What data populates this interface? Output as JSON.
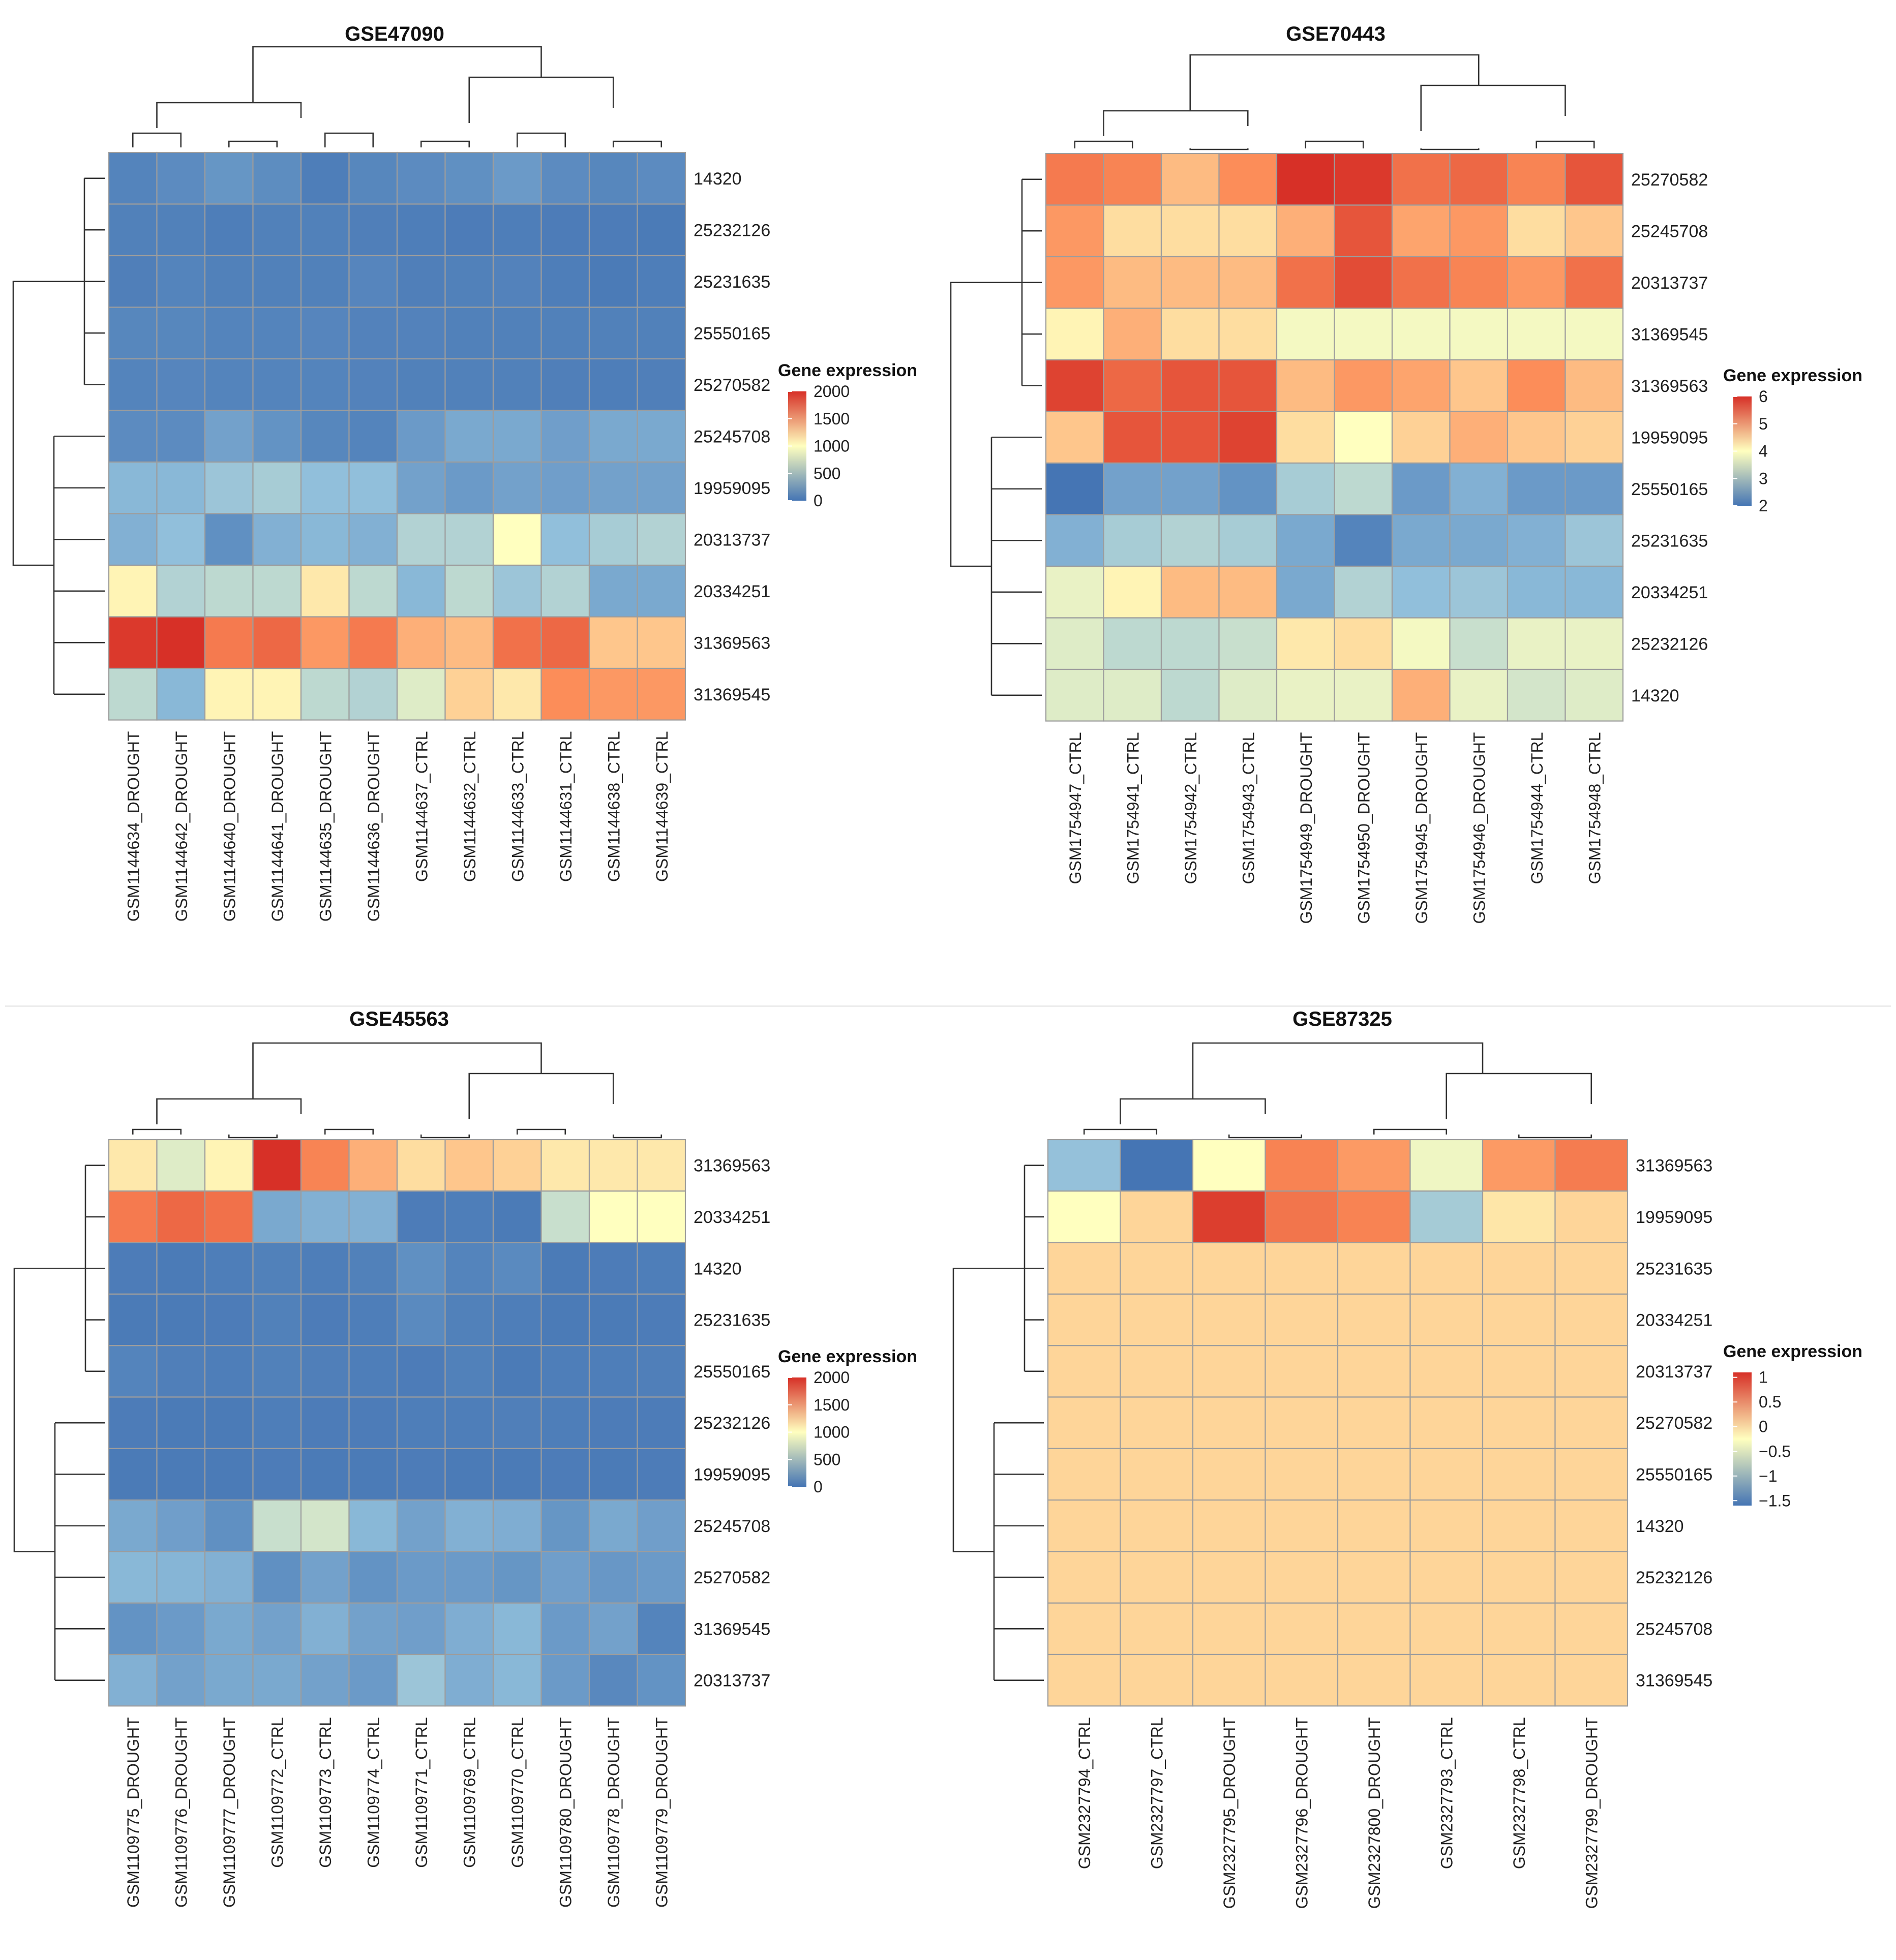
{
  "legend_title": "Gene expression",
  "chart_data": [
    {
      "type": "heatmap",
      "title": "GSE47090",
      "columns": [
        "GSM1144634_DROUGHT",
        "GSM1144642_DROUGHT",
        "GSM1144640_DROUGHT",
        "GSM1144641_DROUGHT",
        "GSM1144635_DROUGHT",
        "GSM1144636_DROUGHT",
        "GSM1144637_CTRL",
        "GSM1144632_CTRL",
        "GSM1144633_CTRL",
        "GSM1144631_CTRL",
        "GSM1144638_CTRL",
        "GSM1144639_CTRL"
      ],
      "rows": [
        "14320",
        "25232126",
        "25231635",
        "25550165",
        "25270582",
        "25245708",
        "19959095",
        "20313737",
        "20334251",
        "31369563",
        "31369545"
      ],
      "values": [
        [
          100,
          150,
          220,
          160,
          60,
          120,
          150,
          180,
          250,
          150,
          120,
          150
        ],
        [
          80,
          80,
          60,
          80,
          80,
          70,
          60,
          50,
          60,
          50,
          50,
          40
        ],
        [
          70,
          100,
          80,
          80,
          80,
          110,
          70,
          80,
          90,
          60,
          40,
          60
        ],
        [
          120,
          120,
          100,
          100,
          110,
          90,
          90,
          80,
          80,
          80,
          80,
          80
        ],
        [
          100,
          110,
          100,
          100,
          100,
          90,
          80,
          80,
          80,
          70,
          60,
          70
        ],
        [
          150,
          150,
          300,
          200,
          120,
          100,
          250,
          350,
          350,
          280,
          350,
          350
        ],
        [
          450,
          450,
          550,
          600,
          500,
          500,
          300,
          250,
          300,
          280,
          300,
          300
        ],
        [
          400,
          500,
          180,
          400,
          450,
          400,
          650,
          650,
          1000,
          500,
          600,
          650
        ],
        [
          1050,
          650,
          700,
          700,
          1100,
          700,
          450,
          700,
          550,
          650,
          350,
          350
        ],
        [
          1950,
          2000,
          1600,
          1700,
          1450,
          1600,
          1350,
          1300,
          1650,
          1700,
          1250,
          1250
        ],
        [
          700,
          450,
          1050,
          1050,
          700,
          650,
          850,
          1200,
          1100,
          1500,
          1450,
          1450
        ]
      ],
      "legend": {
        "min": 0,
        "max": 2000,
        "ticks": [
          2000,
          1500,
          1000,
          500,
          0
        ]
      }
    },
    {
      "type": "heatmap",
      "title": "GSE70443",
      "columns": [
        "GSM1754947_CTRL",
        "GSM1754941_CTRL",
        "GSM1754942_CTRL",
        "GSM1754943_CTRL",
        "GSM1754949_DROUGHT",
        "GSM1754950_DROUGHT",
        "GSM1754945_DROUGHT",
        "GSM1754946_DROUGHT",
        "GSM1754944_CTRL",
        "GSM1754948_CTRL"
      ],
      "rows": [
        "25270582",
        "25245708",
        "20313737",
        "31369545",
        "31369563",
        "19959095",
        "25550165",
        "25231635",
        "20334251",
        "25232126",
        "14320"
      ],
      "values": [
        [
          5.2,
          5.1,
          4.6,
          5.0,
          6.0,
          5.9,
          5.3,
          5.4,
          5.1,
          5.6
        ],
        [
          4.9,
          4.3,
          4.3,
          4.3,
          4.7,
          5.6,
          4.8,
          4.9,
          4.3,
          4.5
        ],
        [
          4.9,
          4.6,
          4.6,
          4.6,
          5.3,
          5.7,
          5.3,
          5.1,
          4.9,
          5.3
        ],
        [
          4.1,
          4.7,
          4.3,
          4.3,
          3.9,
          3.9,
          3.9,
          3.9,
          3.9,
          3.9
        ],
        [
          5.8,
          5.4,
          5.6,
          5.6,
          4.6,
          4.9,
          4.8,
          4.5,
          5.0,
          4.6
        ],
        [
          4.5,
          5.6,
          5.6,
          5.8,
          4.3,
          4.0,
          4.4,
          4.7,
          4.5,
          4.4
        ],
        [
          2.0,
          2.6,
          2.6,
          2.4,
          3.2,
          3.4,
          2.5,
          2.8,
          2.5,
          2.5
        ],
        [
          2.8,
          3.2,
          3.3,
          3.2,
          2.7,
          2.2,
          2.7,
          2.7,
          2.8,
          3.1
        ],
        [
          3.8,
          4.1,
          4.6,
          4.6,
          2.7,
          3.3,
          3.0,
          3.1,
          2.9,
          2.9
        ],
        [
          3.7,
          3.4,
          3.4,
          3.5,
          4.2,
          4.3,
          3.9,
          3.5,
          3.8,
          3.8
        ],
        [
          3.7,
          3.7,
          3.4,
          3.7,
          3.8,
          3.8,
          4.7,
          3.8,
          3.6,
          3.7
        ]
      ],
      "legend": {
        "min": 2,
        "max": 6,
        "ticks": [
          6,
          5,
          4,
          3,
          2
        ]
      }
    },
    {
      "type": "heatmap",
      "title": "GSE45563",
      "columns": [
        "GSM1109775_DROUGHT",
        "GSM1109776_DROUGHT",
        "GSM1109777_DROUGHT",
        "GSM1109772_CTRL",
        "GSM1109773_CTRL",
        "GSM1109774_CTRL",
        "GSM1109771_CTRL",
        "GSM1109769_CTRL",
        "GSM1109770_CTRL",
        "GSM1109780_DROUGHT",
        "GSM1109778_DROUGHT",
        "GSM1109779_DROUGHT"
      ],
      "rows": [
        "31369563",
        "20334251",
        "14320",
        "25231635",
        "25550165",
        "25232126",
        "19959095",
        "25245708",
        "25270582",
        "31369545",
        "20313737"
      ],
      "values": [
        [
          1100,
          850,
          1050,
          2000,
          1550,
          1350,
          1150,
          1250,
          1200,
          1100,
          1100,
          1100
        ],
        [
          1600,
          1700,
          1650,
          350,
          400,
          400,
          50,
          60,
          40,
          750,
          1000,
          1000
        ],
        [
          50,
          40,
          60,
          80,
          60,
          80,
          180,
          100,
          140,
          40,
          50,
          60
        ],
        [
          40,
          40,
          50,
          80,
          50,
          60,
          140,
          80,
          60,
          40,
          40,
          50
        ],
        [
          100,
          70,
          60,
          80,
          70,
          60,
          50,
          80,
          40,
          60,
          60,
          70
        ],
        [
          50,
          40,
          40,
          60,
          50,
          50,
          60,
          60,
          70,
          60,
          50,
          50
        ],
        [
          40,
          40,
          40,
          50,
          40,
          40,
          50,
          40,
          40,
          50,
          40,
          50
        ],
        [
          350,
          280,
          180,
          750,
          800,
          450,
          300,
          400,
          380,
          220,
          350,
          280
        ],
        [
          450,
          430,
          400,
          180,
          300,
          200,
          250,
          250,
          220,
          280,
          230,
          250
        ],
        [
          200,
          250,
          350,
          300,
          400,
          300,
          280,
          380,
          450,
          250,
          300,
          100
        ],
        [
          400,
          300,
          350,
          350,
          300,
          250,
          550,
          380,
          450,
          250,
          130,
          200
        ]
      ],
      "legend": {
        "min": 0,
        "max": 2000,
        "ticks": [
          2000,
          1500,
          1000,
          500,
          0
        ]
      }
    },
    {
      "type": "heatmap",
      "title": "GSE87325",
      "columns": [
        "GSM2327794_CTRL",
        "GSM2327797_CTRL",
        "GSM2327795_DROUGHT",
        "GSM2327796_DROUGHT",
        "GSM2327800_DROUGHT",
        "GSM2327793_CTRL",
        "GSM2327798_CTRL",
        "GSM2327799_DROUGHT"
      ],
      "rows": [
        "31369563",
        "19959095",
        "25231635",
        "20334251",
        "20313737",
        "25270582",
        "25550165",
        "14320",
        "25232126",
        "25245708",
        "31369545"
      ],
      "values": [
        [
          -0.9,
          -1.6,
          -0.25,
          0.5,
          0.35,
          -0.35,
          0.35,
          0.55
        ],
        [
          -0.25,
          0.0,
          1.0,
          0.6,
          0.5,
          -0.8,
          -0.1,
          0.0
        ],
        [
          0,
          0,
          0,
          0,
          0,
          0,
          0,
          0
        ],
        [
          0,
          0,
          0,
          0,
          0,
          0,
          0,
          0
        ],
        [
          0,
          0,
          0,
          0,
          0,
          0,
          0,
          0
        ],
        [
          0,
          0,
          0,
          0,
          0,
          0,
          0,
          0
        ],
        [
          0,
          0,
          0,
          0,
          0,
          0,
          0,
          0
        ],
        [
          0,
          0,
          0,
          0,
          0,
          0,
          0,
          0
        ],
        [
          0,
          0,
          0,
          0,
          0,
          0,
          0,
          0
        ],
        [
          0,
          0,
          0,
          0,
          0,
          0,
          0,
          0
        ],
        [
          0,
          0,
          0,
          0,
          0,
          0,
          0,
          0
        ]
      ],
      "legend": {
        "min": -1.6,
        "max": 1.1,
        "ticks": [
          1,
          0.5,
          0,
          -0.5,
          -1,
          -1.5
        ],
        "tick_labels": [
          "1",
          "0.5",
          "0",
          "−0.5",
          "−1",
          "−1.5"
        ]
      }
    }
  ]
}
